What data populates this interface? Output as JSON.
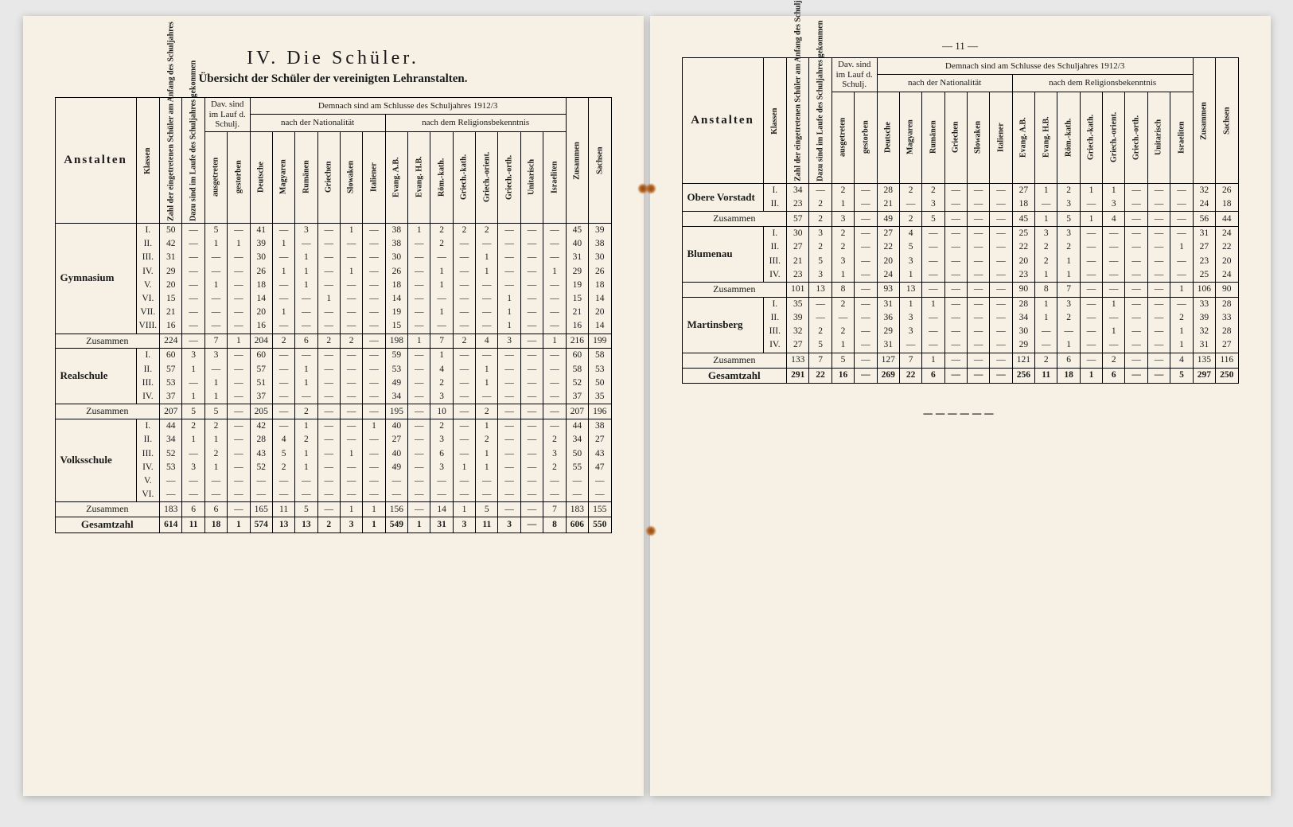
{
  "page_number_right": "— 11 —",
  "section_title": "IV. Die Schüler.",
  "subtitle": "Übersicht der Schüler der vereinigten Lehranstalten.",
  "header": {
    "anstalten": "Anstalten",
    "klassen": "Klassen",
    "col_eingetreten": "Zahl der eingetretenen Schüler am Anfang des Schuljahres",
    "col_dazu": "Dazu sind im Laufe des Schuljahres gekommen",
    "col_ausgetreten": "ausgetreten",
    "col_gestorben": "gestorben",
    "col_dav": "Dav. sind im Lauf d. Schulj.",
    "top_span": "Demnach sind am Schlusse des Schuljahres 1912/3",
    "nat_title": "nach der Nationalität",
    "rel_title": "nach dem Religionsbekenntnis",
    "nat": [
      "Deutsche",
      "Magyaren",
      "Rumänen",
      "Griechen",
      "Slowaken",
      "Italiener"
    ],
    "rel": [
      "Evang. A.B.",
      "Evang. H.B.",
      "Röm.-kath.",
      "Griech.-kath.",
      "Griech.-orient.",
      "Griech.-orth.",
      "Unitarisch",
      "Israeliten"
    ],
    "zusammen": "Zusammen",
    "sachsen": "Sachsen"
  },
  "labels": {
    "zusammen_row": "Zusammen",
    "gesamtzahl": "Gesamtzahl"
  },
  "left_groups": [
    {
      "name": "Gymnasium",
      "rows": [
        {
          "k": "I.",
          "c": [
            "50",
            "—",
            "5",
            "—",
            "41",
            "—",
            "3",
            "—",
            "1",
            "—",
            "38",
            "1",
            "2",
            "2",
            "2",
            "—",
            "—",
            "—",
            "45",
            "39"
          ]
        },
        {
          "k": "II.",
          "c": [
            "42",
            "—",
            "1",
            "1",
            "39",
            "1",
            "—",
            "—",
            "—",
            "—",
            "38",
            "—",
            "2",
            "—",
            "—",
            "—",
            "—",
            "—",
            "40",
            "38"
          ]
        },
        {
          "k": "III.",
          "c": [
            "31",
            "—",
            "—",
            "—",
            "30",
            "—",
            "1",
            "—",
            "—",
            "—",
            "30",
            "—",
            "—",
            "—",
            "1",
            "—",
            "—",
            "—",
            "31",
            "30"
          ]
        },
        {
          "k": "IV.",
          "c": [
            "29",
            "—",
            "—",
            "—",
            "26",
            "1",
            "1",
            "—",
            "1",
            "—",
            "26",
            "—",
            "1",
            "—",
            "1",
            "—",
            "—",
            "1",
            "29",
            "26"
          ]
        },
        {
          "k": "V.",
          "c": [
            "20",
            "—",
            "1",
            "—",
            "18",
            "—",
            "1",
            "—",
            "—",
            "—",
            "18",
            "—",
            "1",
            "—",
            "—",
            "—",
            "—",
            "—",
            "19",
            "18"
          ]
        },
        {
          "k": "VI.",
          "c": [
            "15",
            "—",
            "—",
            "—",
            "14",
            "—",
            "—",
            "1",
            "—",
            "—",
            "14",
            "—",
            "—",
            "—",
            "—",
            "1",
            "—",
            "—",
            "15",
            "14"
          ]
        },
        {
          "k": "VII.",
          "c": [
            "21",
            "—",
            "—",
            "—",
            "20",
            "1",
            "—",
            "—",
            "—",
            "—",
            "19",
            "—",
            "1",
            "—",
            "—",
            "1",
            "—",
            "—",
            "21",
            "20"
          ]
        },
        {
          "k": "VIII.",
          "c": [
            "16",
            "—",
            "—",
            "—",
            "16",
            "—",
            "—",
            "—",
            "—",
            "—",
            "15",
            "—",
            "—",
            "—",
            "—",
            "1",
            "—",
            "—",
            "16",
            "14"
          ]
        }
      ],
      "sum": [
        "224",
        "—",
        "7",
        "1",
        "204",
        "2",
        "6",
        "2",
        "2",
        "—",
        "198",
        "1",
        "7",
        "2",
        "4",
        "3",
        "—",
        "1",
        "216",
        "199"
      ]
    },
    {
      "name": "Realschule",
      "rows": [
        {
          "k": "I.",
          "c": [
            "60",
            "3",
            "3",
            "—",
            "60",
            "—",
            "—",
            "—",
            "—",
            "—",
            "59",
            "—",
            "1",
            "—",
            "—",
            "—",
            "—",
            "—",
            "60",
            "58"
          ]
        },
        {
          "k": "II.",
          "c": [
            "57",
            "1",
            "—",
            "—",
            "57",
            "—",
            "1",
            "—",
            "—",
            "—",
            "53",
            "—",
            "4",
            "—",
            "1",
            "—",
            "—",
            "—",
            "58",
            "53"
          ]
        },
        {
          "k": "III.",
          "c": [
            "53",
            "—",
            "1",
            "—",
            "51",
            "—",
            "1",
            "—",
            "—",
            "—",
            "49",
            "—",
            "2",
            "—",
            "1",
            "—",
            "—",
            "—",
            "52",
            "50"
          ]
        },
        {
          "k": "IV.",
          "c": [
            "37",
            "1",
            "1",
            "—",
            "37",
            "—",
            "—",
            "—",
            "—",
            "—",
            "34",
            "—",
            "3",
            "—",
            "—",
            "—",
            "—",
            "—",
            "37",
            "35"
          ]
        }
      ],
      "sum": [
        "207",
        "5",
        "5",
        "—",
        "205",
        "—",
        "2",
        "—",
        "—",
        "—",
        "195",
        "—",
        "10",
        "—",
        "2",
        "—",
        "—",
        "—",
        "207",
        "196"
      ]
    },
    {
      "name": "Volksschule",
      "rows": [
        {
          "k": "I.",
          "c": [
            "44",
            "2",
            "2",
            "—",
            "42",
            "—",
            "1",
            "—",
            "—",
            "1",
            "40",
            "—",
            "2",
            "—",
            "1",
            "—",
            "—",
            "—",
            "44",
            "38"
          ]
        },
        {
          "k": "II.",
          "c": [
            "34",
            "1",
            "1",
            "—",
            "28",
            "4",
            "2",
            "—",
            "—",
            "—",
            "27",
            "—",
            "3",
            "—",
            "2",
            "—",
            "—",
            "2",
            "34",
            "27"
          ]
        },
        {
          "k": "III.",
          "c": [
            "52",
            "—",
            "2",
            "—",
            "43",
            "5",
            "1",
            "—",
            "1",
            "—",
            "40",
            "—",
            "6",
            "—",
            "1",
            "—",
            "—",
            "3",
            "50",
            "43"
          ]
        },
        {
          "k": "IV.",
          "c": [
            "53",
            "3",
            "1",
            "—",
            "52",
            "2",
            "1",
            "—",
            "—",
            "—",
            "49",
            "—",
            "3",
            "1",
            "1",
            "—",
            "—",
            "2",
            "55",
            "47"
          ]
        },
        {
          "k": "V.",
          "c": [
            "—",
            "—",
            "—",
            "—",
            "—",
            "—",
            "—",
            "—",
            "—",
            "—",
            "—",
            "—",
            "—",
            "—",
            "—",
            "—",
            "—",
            "—",
            "—",
            "—"
          ]
        },
        {
          "k": "VI.",
          "c": [
            "—",
            "—",
            "—",
            "—",
            "—",
            "—",
            "—",
            "—",
            "—",
            "—",
            "—",
            "—",
            "—",
            "—",
            "—",
            "—",
            "—",
            "—",
            "—",
            "—"
          ]
        }
      ],
      "sum": [
        "183",
        "6",
        "6",
        "—",
        "165",
        "11",
        "5",
        "—",
        "1",
        "1",
        "156",
        "—",
        "14",
        "1",
        "5",
        "—",
        "—",
        "7",
        "183",
        "155"
      ]
    }
  ],
  "left_total": [
    "614",
    "11",
    "18",
    "1",
    "574",
    "13",
    "13",
    "2",
    "3",
    "1",
    "549",
    "1",
    "31",
    "3",
    "11",
    "3",
    "—",
    "8",
    "606",
    "550"
  ],
  "right_groups": [
    {
      "name": "Obere Vorstadt",
      "rows": [
        {
          "k": "I.",
          "c": [
            "34",
            "—",
            "2",
            "—",
            "28",
            "2",
            "2",
            "—",
            "—",
            "—",
            "27",
            "1",
            "2",
            "1",
            "1",
            "—",
            "—",
            "—",
            "32",
            "26"
          ]
        },
        {
          "k": "II.",
          "c": [
            "23",
            "2",
            "1",
            "—",
            "21",
            "—",
            "3",
            "—",
            "—",
            "—",
            "18",
            "—",
            "3",
            "—",
            "3",
            "—",
            "—",
            "—",
            "24",
            "18"
          ]
        }
      ],
      "sum": [
        "57",
        "2",
        "3",
        "—",
        "49",
        "2",
        "5",
        "—",
        "—",
        "—",
        "45",
        "1",
        "5",
        "1",
        "4",
        "—",
        "—",
        "—",
        "56",
        "44"
      ]
    },
    {
      "name": "Blumenau",
      "rows": [
        {
          "k": "I.",
          "c": [
            "30",
            "3",
            "2",
            "—",
            "27",
            "4",
            "—",
            "—",
            "—",
            "—",
            "25",
            "3",
            "3",
            "—",
            "—",
            "—",
            "—",
            "—",
            "31",
            "24"
          ]
        },
        {
          "k": "II.",
          "c": [
            "27",
            "2",
            "2",
            "—",
            "22",
            "5",
            "—",
            "—",
            "—",
            "—",
            "22",
            "2",
            "2",
            "—",
            "—",
            "—",
            "—",
            "1",
            "27",
            "22"
          ]
        },
        {
          "k": "III.",
          "c": [
            "21",
            "5",
            "3",
            "—",
            "20",
            "3",
            "—",
            "—",
            "—",
            "—",
            "20",
            "2",
            "1",
            "—",
            "—",
            "—",
            "—",
            "—",
            "23",
            "20"
          ]
        },
        {
          "k": "IV.",
          "c": [
            "23",
            "3",
            "1",
            "—",
            "24",
            "1",
            "—",
            "—",
            "—",
            "—",
            "23",
            "1",
            "1",
            "—",
            "—",
            "—",
            "—",
            "—",
            "25",
            "24"
          ]
        }
      ],
      "sum": [
        "101",
        "13",
        "8",
        "—",
        "93",
        "13",
        "—",
        "—",
        "—",
        "—",
        "90",
        "8",
        "7",
        "—",
        "—",
        "—",
        "—",
        "1",
        "106",
        "90"
      ]
    },
    {
      "name": "Martinsberg",
      "rows": [
        {
          "k": "I.",
          "c": [
            "35",
            "—",
            "2",
            "—",
            "31",
            "1",
            "1",
            "—",
            "—",
            "—",
            "28",
            "1",
            "3",
            "—",
            "1",
            "—",
            "—",
            "—",
            "33",
            "28"
          ]
        },
        {
          "k": "II.",
          "c": [
            "39",
            "—",
            "—",
            "—",
            "36",
            "3",
            "—",
            "—",
            "—",
            "—",
            "34",
            "1",
            "2",
            "—",
            "—",
            "—",
            "—",
            "2",
            "39",
            "33"
          ]
        },
        {
          "k": "III.",
          "c": [
            "32",
            "2",
            "2",
            "—",
            "29",
            "3",
            "—",
            "—",
            "—",
            "—",
            "30",
            "—",
            "—",
            "—",
            "1",
            "—",
            "—",
            "1",
            "32",
            "28"
          ]
        },
        {
          "k": "IV.",
          "c": [
            "27",
            "5",
            "1",
            "—",
            "31",
            "—",
            "—",
            "—",
            "—",
            "—",
            "29",
            "—",
            "1",
            "—",
            "—",
            "—",
            "—",
            "1",
            "31",
            "27"
          ]
        }
      ],
      "sum": [
        "133",
        "7",
        "5",
        "—",
        "127",
        "7",
        "1",
        "—",
        "—",
        "—",
        "121",
        "2",
        "6",
        "—",
        "2",
        "—",
        "—",
        "4",
        "135",
        "116"
      ]
    }
  ],
  "right_total": [
    "291",
    "22",
    "16",
    "—",
    "269",
    "22",
    "6",
    "—",
    "—",
    "—",
    "256",
    "11",
    "18",
    "1",
    "6",
    "—",
    "—",
    "5",
    "297",
    "250"
  ]
}
